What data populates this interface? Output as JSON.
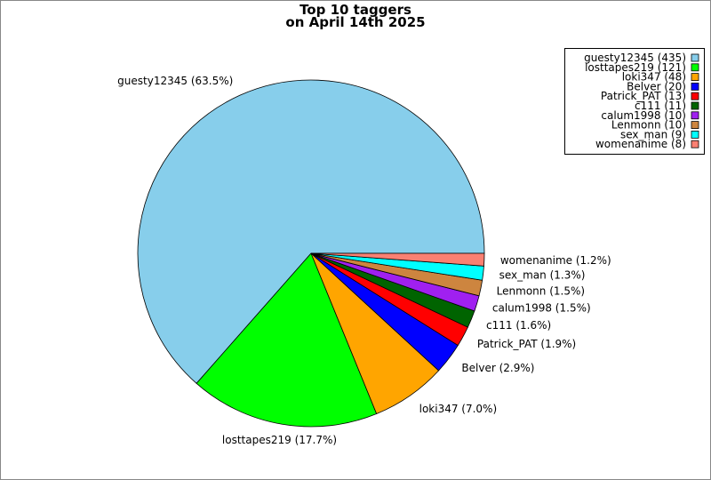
{
  "chart_data": {
    "type": "pie",
    "title": "Top 10 taggers",
    "subtitle": "on April 14th 2025",
    "categories": [
      "guesty12345 (435)",
      "losttapes219 (121)",
      "loki347 (48)",
      "Belver (20)",
      "Patrick_PAT (13)",
      "c111 (11)",
      "calum1998 (10)",
      "Lenmonn (10)",
      "sex_man (9)",
      "womenanime (8)"
    ],
    "values": [
      435,
      121,
      48,
      20,
      13,
      11,
      10,
      10,
      9,
      8
    ],
    "value_labels": [
      "guesty12345 (63.5%)",
      "losttapes219 (17.7%)",
      "loki347 (7.0%)",
      "Belver (2.9%)",
      "Patrick_PAT (1.9%)",
      "c111 (1.6%)",
      "calum1998 (1.5%)",
      "Lenmonn (1.5%)",
      "sex_man (1.3%)",
      "womenanime (1.2%)"
    ],
    "colors": [
      "#87ceeb",
      "#00ff00",
      "#ffa500",
      "#0000ff",
      "#ff0000",
      "#006400",
      "#a020f0",
      "#cd853f",
      "#00ffff",
      "#fa8072"
    ],
    "legend": "upper right"
  }
}
